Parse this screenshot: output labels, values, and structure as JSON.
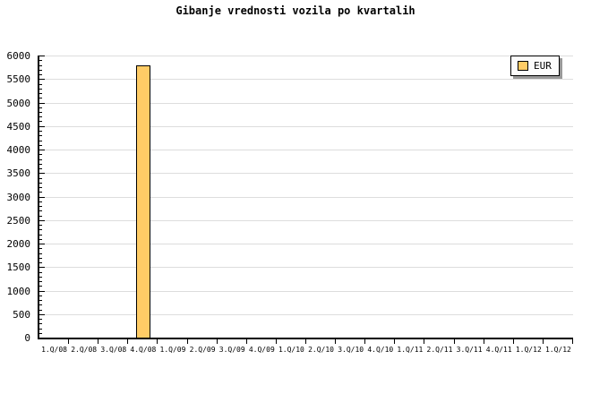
{
  "page": {
    "background": "#FFFFFF"
  },
  "chart_data": {
    "type": "bar",
    "title": "Gibanje vrednosti vozila po kvartalih",
    "categories": [
      "1.Q/08",
      "2.Q/08",
      "3.Q/08",
      "4.Q/08",
      "1.Q/09",
      "2.Q/09",
      "3.Q/09",
      "4.Q/09",
      "1.Q/10",
      "2.Q/10",
      "3.Q/10",
      "4.Q/10",
      "1.Q/11",
      "2.Q/11",
      "3.Q/11",
      "4.Q/11",
      "1.Q/12",
      "1.Q/12"
    ],
    "series": [
      {
        "name": "EUR",
        "color": "#FFCC66",
        "values": [
          null,
          null,
          null,
          5800,
          null,
          null,
          null,
          null,
          null,
          null,
          null,
          null,
          null,
          null,
          null,
          null,
          null,
          null
        ]
      }
    ],
    "xlabel": "",
    "ylabel": "",
    "ylim": [
      0,
      6000
    ],
    "ytick_step": 500,
    "y_minor_step": 100,
    "yticks": [
      0,
      500,
      1000,
      1500,
      2000,
      2500,
      3000,
      3500,
      4000,
      4500,
      5000,
      5500,
      6000
    ],
    "grid": "horizontal-major",
    "legend": {
      "position": "top-right",
      "entries": [
        "EUR"
      ]
    },
    "colors": {
      "bar_fill": "#FFCC66",
      "bar_border": "#000000",
      "grid": "#DDDDDD",
      "axis": "#000000",
      "text": "#000000",
      "legend_bg": "#FCFCFC",
      "legend_border": "#000000",
      "legend_shadow": "#999999"
    }
  }
}
